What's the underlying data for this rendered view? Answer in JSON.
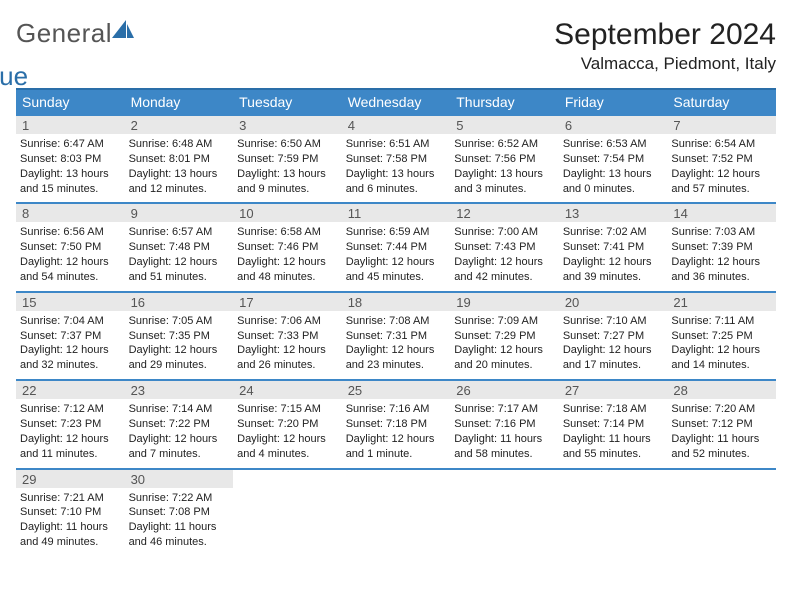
{
  "logo": {
    "word1": "General",
    "word2": "Blue",
    "color1": "#555555",
    "color2": "#2a6ea8",
    "icon_color": "#2a6ea8"
  },
  "title": "September 2024",
  "location": "Valmacca, Piedmont, Italy",
  "colors": {
    "header_bg": "#3d87c7",
    "header_border": "#2a6ea8",
    "row_border": "#3d87c7",
    "daynum_bg": "#e8e8e8",
    "text": "#222222"
  },
  "day_headers": [
    "Sunday",
    "Monday",
    "Tuesday",
    "Wednesday",
    "Thursday",
    "Friday",
    "Saturday"
  ],
  "weeks": [
    [
      {
        "n": "1",
        "sr": "6:47 AM",
        "ss": "8:03 PM",
        "dl": "13 hours and 15 minutes."
      },
      {
        "n": "2",
        "sr": "6:48 AM",
        "ss": "8:01 PM",
        "dl": "13 hours and 12 minutes."
      },
      {
        "n": "3",
        "sr": "6:50 AM",
        "ss": "7:59 PM",
        "dl": "13 hours and 9 minutes."
      },
      {
        "n": "4",
        "sr": "6:51 AM",
        "ss": "7:58 PM",
        "dl": "13 hours and 6 minutes."
      },
      {
        "n": "5",
        "sr": "6:52 AM",
        "ss": "7:56 PM",
        "dl": "13 hours and 3 minutes."
      },
      {
        "n": "6",
        "sr": "6:53 AM",
        "ss": "7:54 PM",
        "dl": "13 hours and 0 minutes."
      },
      {
        "n": "7",
        "sr": "6:54 AM",
        "ss": "7:52 PM",
        "dl": "12 hours and 57 minutes."
      }
    ],
    [
      {
        "n": "8",
        "sr": "6:56 AM",
        "ss": "7:50 PM",
        "dl": "12 hours and 54 minutes."
      },
      {
        "n": "9",
        "sr": "6:57 AM",
        "ss": "7:48 PM",
        "dl": "12 hours and 51 minutes."
      },
      {
        "n": "10",
        "sr": "6:58 AM",
        "ss": "7:46 PM",
        "dl": "12 hours and 48 minutes."
      },
      {
        "n": "11",
        "sr": "6:59 AM",
        "ss": "7:44 PM",
        "dl": "12 hours and 45 minutes."
      },
      {
        "n": "12",
        "sr": "7:00 AM",
        "ss": "7:43 PM",
        "dl": "12 hours and 42 minutes."
      },
      {
        "n": "13",
        "sr": "7:02 AM",
        "ss": "7:41 PM",
        "dl": "12 hours and 39 minutes."
      },
      {
        "n": "14",
        "sr": "7:03 AM",
        "ss": "7:39 PM",
        "dl": "12 hours and 36 minutes."
      }
    ],
    [
      {
        "n": "15",
        "sr": "7:04 AM",
        "ss": "7:37 PM",
        "dl": "12 hours and 32 minutes."
      },
      {
        "n": "16",
        "sr": "7:05 AM",
        "ss": "7:35 PM",
        "dl": "12 hours and 29 minutes."
      },
      {
        "n": "17",
        "sr": "7:06 AM",
        "ss": "7:33 PM",
        "dl": "12 hours and 26 minutes."
      },
      {
        "n": "18",
        "sr": "7:08 AM",
        "ss": "7:31 PM",
        "dl": "12 hours and 23 minutes."
      },
      {
        "n": "19",
        "sr": "7:09 AM",
        "ss": "7:29 PM",
        "dl": "12 hours and 20 minutes."
      },
      {
        "n": "20",
        "sr": "7:10 AM",
        "ss": "7:27 PM",
        "dl": "12 hours and 17 minutes."
      },
      {
        "n": "21",
        "sr": "7:11 AM",
        "ss": "7:25 PM",
        "dl": "12 hours and 14 minutes."
      }
    ],
    [
      {
        "n": "22",
        "sr": "7:12 AM",
        "ss": "7:23 PM",
        "dl": "12 hours and 11 minutes."
      },
      {
        "n": "23",
        "sr": "7:14 AM",
        "ss": "7:22 PM",
        "dl": "12 hours and 7 minutes."
      },
      {
        "n": "24",
        "sr": "7:15 AM",
        "ss": "7:20 PM",
        "dl": "12 hours and 4 minutes."
      },
      {
        "n": "25",
        "sr": "7:16 AM",
        "ss": "7:18 PM",
        "dl": "12 hours and 1 minute."
      },
      {
        "n": "26",
        "sr": "7:17 AM",
        "ss": "7:16 PM",
        "dl": "11 hours and 58 minutes."
      },
      {
        "n": "27",
        "sr": "7:18 AM",
        "ss": "7:14 PM",
        "dl": "11 hours and 55 minutes."
      },
      {
        "n": "28",
        "sr": "7:20 AM",
        "ss": "7:12 PM",
        "dl": "11 hours and 52 minutes."
      }
    ],
    [
      {
        "n": "29",
        "sr": "7:21 AM",
        "ss": "7:10 PM",
        "dl": "11 hours and 49 minutes."
      },
      {
        "n": "30",
        "sr": "7:22 AM",
        "ss": "7:08 PM",
        "dl": "11 hours and 46 minutes."
      },
      null,
      null,
      null,
      null,
      null
    ]
  ],
  "labels": {
    "sunrise": "Sunrise:",
    "sunset": "Sunset:",
    "daylight": "Daylight:"
  }
}
